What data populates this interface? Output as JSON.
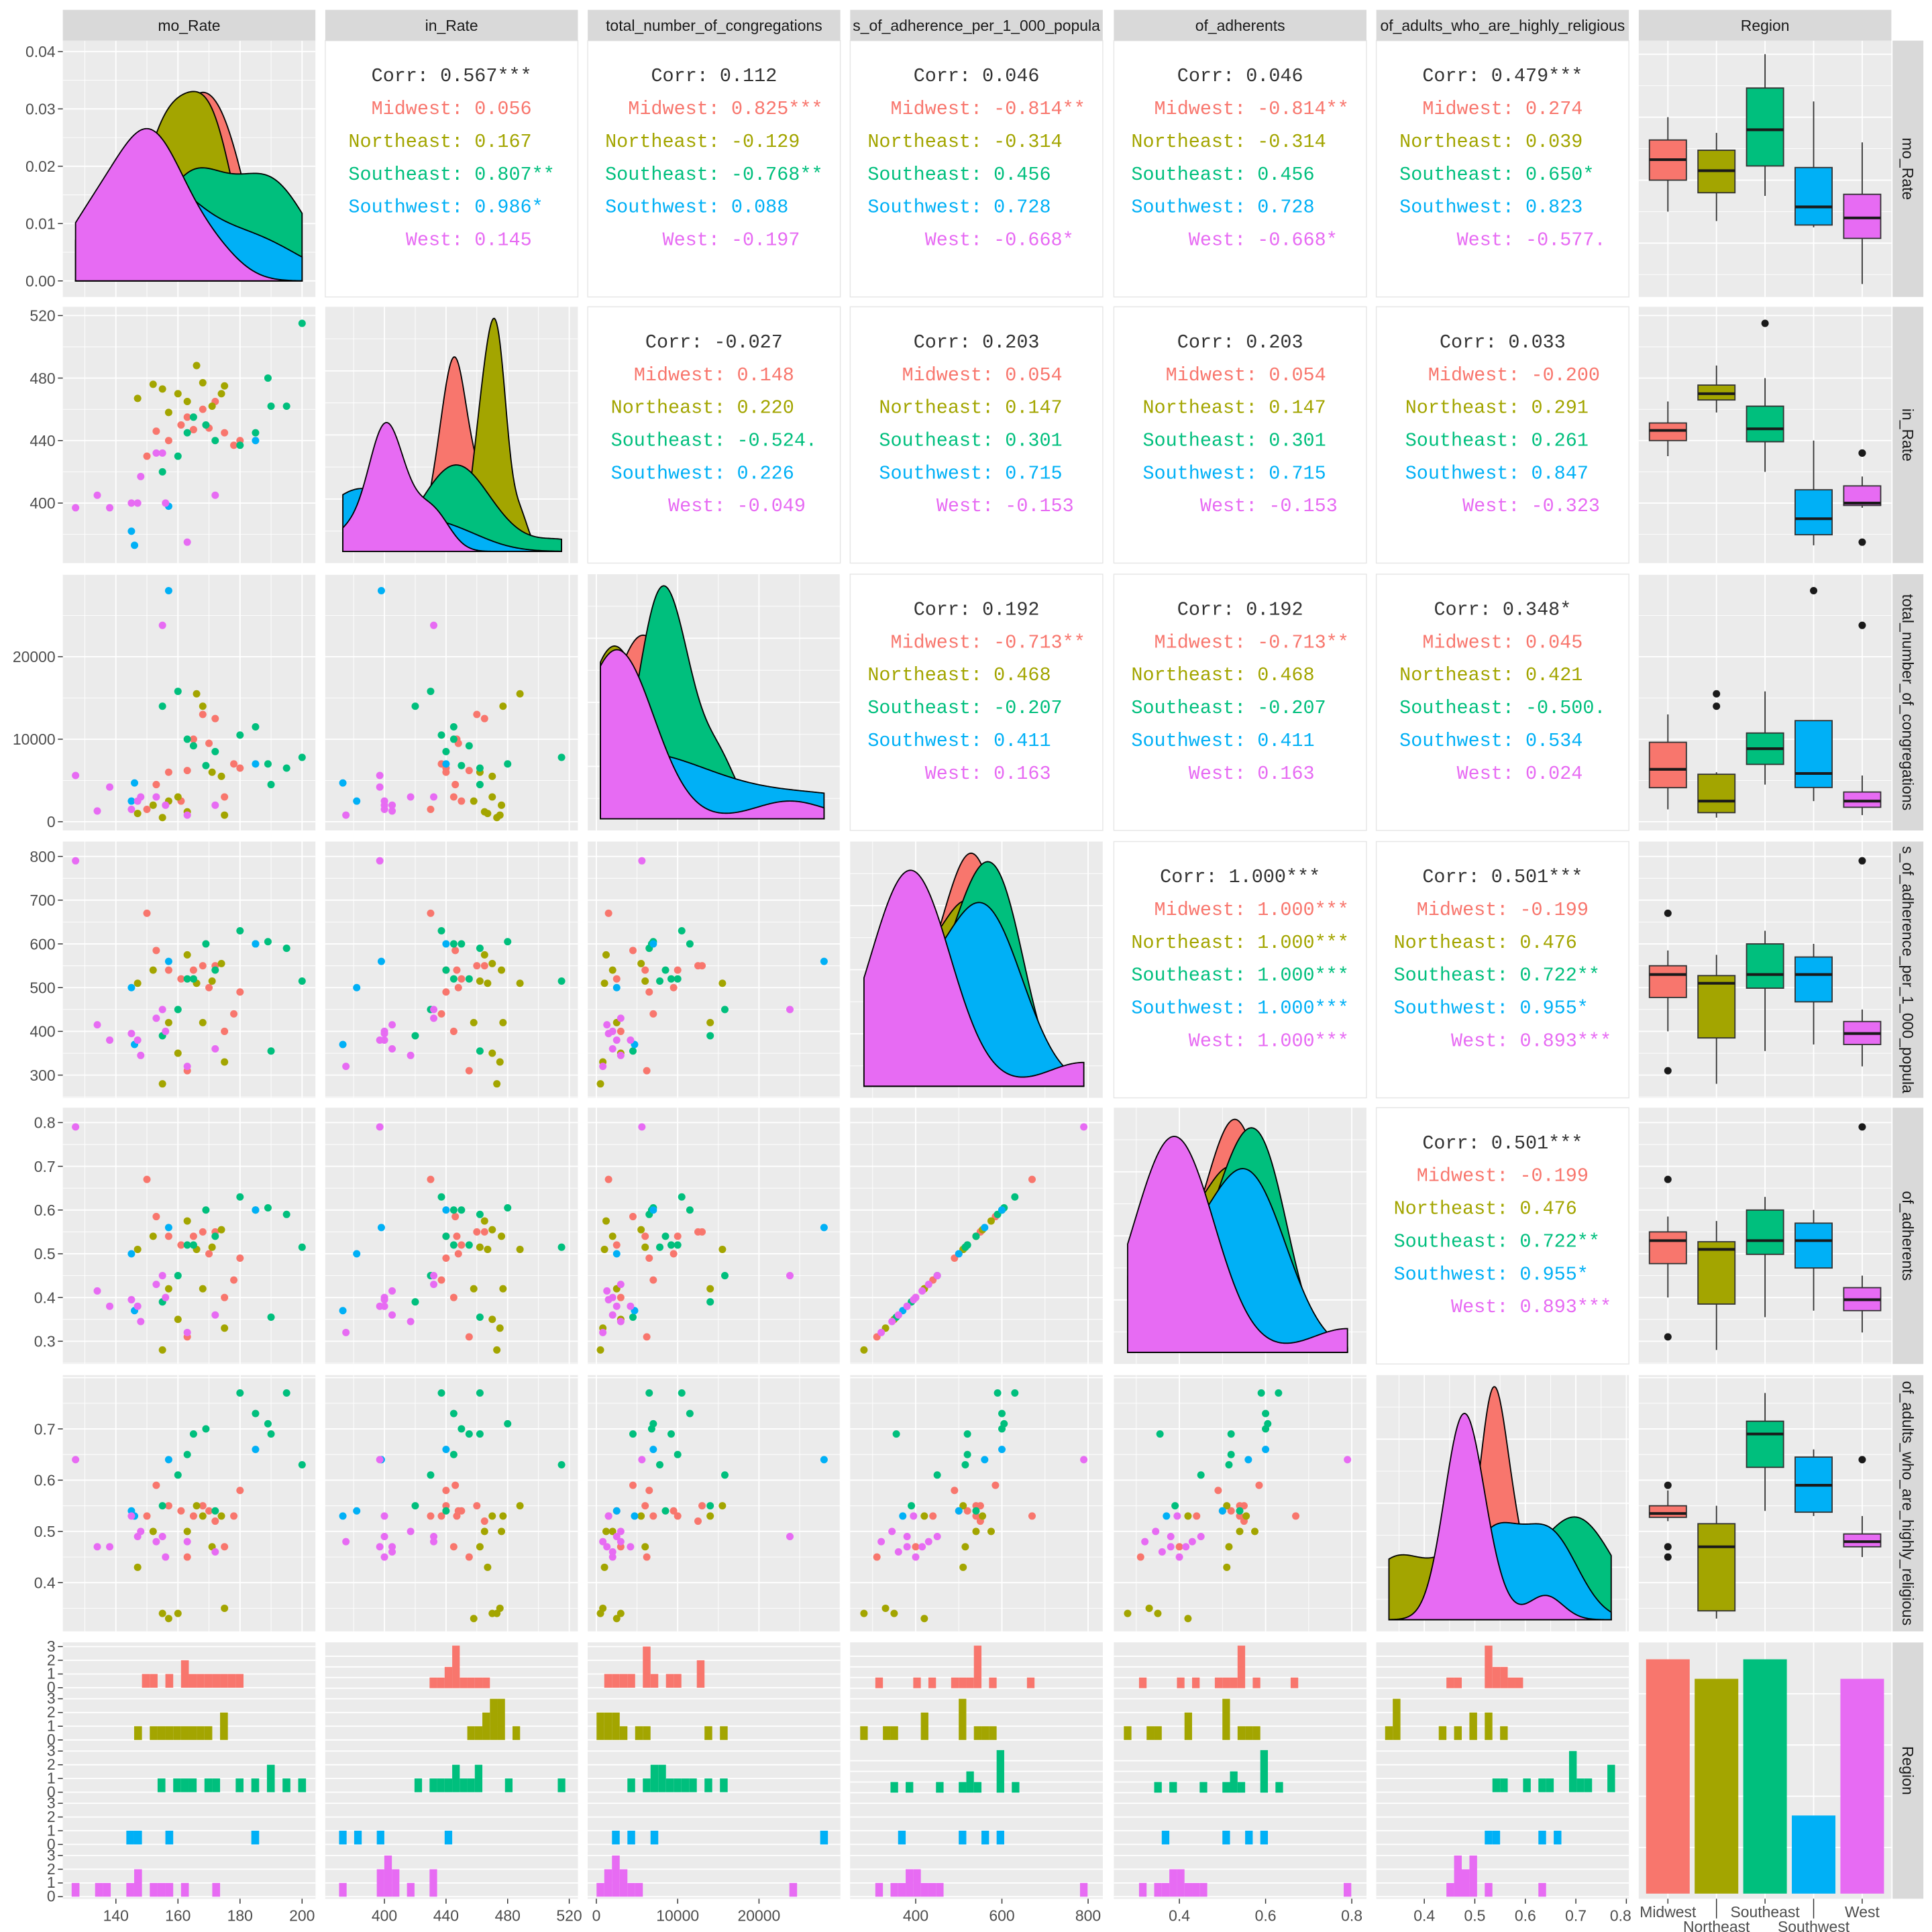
{
  "chart_data": {
    "type": "scatter",
    "subtype": "pairs plot (scatterplot matrix) colored by Region",
    "variables": [
      {
        "strip_label": "mo_Rate",
        "range": [
          122.9,
          204.3
        ],
        "x_ticks": [
          140,
          160,
          180,
          200
        ],
        "x_tick_labels": [
          "140",
          "160",
          "180",
          "200"
        ],
        "y_ticks": [],
        "y_tick_labels": []
      },
      {
        "strip_label": "in_Rate",
        "range": [
          361.6,
          525.6
        ],
        "x_ticks": [
          400,
          440,
          480,
          520
        ],
        "x_tick_labels": [
          "400",
          "440",
          "480",
          "520"
        ],
        "y_ticks": [
          400,
          440,
          480,
          520
        ],
        "y_tick_labels": [
          "400",
          "440",
          "480",
          "520"
        ]
      },
      {
        "strip_label": "total_number_of_congregations",
        "range": [
          -1060,
          30000
        ],
        "x_ticks": [
          0,
          10000,
          20000
        ],
        "x_tick_labels": [
          "0",
          "10000",
          "20000"
        ],
        "y_ticks": [
          0,
          10000,
          20000
        ],
        "y_tick_labels": [
          "0",
          "10000",
          "20000"
        ]
      },
      {
        "strip_label": "s_of_adherence_per_1_000_popula",
        "range": [
          248,
          834
        ],
        "x_ticks": [
          400,
          600,
          800
        ],
        "x_tick_labels": [
          "400",
          "600",
          "800"
        ],
        "y_ticks": [
          300,
          400,
          500,
          600,
          700,
          800
        ],
        "y_tick_labels": [
          "300",
          "400",
          "500",
          "600",
          "700",
          "800"
        ]
      },
      {
        "strip_label": "of_adherents",
        "range": [
          0.248,
          0.834
        ],
        "x_ticks": [
          0.4,
          0.6,
          0.8
        ],
        "x_tick_labels": [
          "0.4",
          "0.6",
          "0.8"
        ],
        "y_ticks": [
          0.3,
          0.4,
          0.5,
          0.6,
          0.7,
          0.8
        ],
        "y_tick_labels": [
          "0.3",
          "0.4",
          "0.5",
          "0.6",
          "0.7",
          "0.8"
        ]
      },
      {
        "strip_label": "of_adults_who_are_highly_religious",
        "range": [
          0.305,
          0.805
        ],
        "x_ticks": [
          0.4,
          0.5,
          0.6,
          0.7,
          0.8
        ],
        "x_tick_labels": [
          "0.4",
          "0.5",
          "0.6",
          "0.7",
          "0.8"
        ],
        "y_ticks": [
          0.4,
          0.5,
          0.6,
          0.7
        ],
        "y_tick_labels": [
          "0.4",
          "0.5",
          "0.6",
          "0.7"
        ]
      }
    ],
    "region": {
      "strip_label": "Region",
      "levels": [
        "Midwest",
        "Northeast",
        "Southeast",
        "Southwest",
        "West"
      ],
      "colors": [
        "#F8766D",
        "#A3A500",
        "#00BF7D",
        "#00B0F6",
        "#E76BF3"
      ]
    },
    "density_range": [
      -0.0028,
      0.0419
    ],
    "density_ticks": [
      0,
      0.01,
      0.02,
      0.03,
      0.04
    ],
    "density_tick_labels": [
      "0.00",
      "0.01",
      "0.02",
      "0.03",
      "0.04"
    ],
    "count_ticks": [
      0,
      1,
      2,
      3
    ],
    "count_tick_labels": [
      "0",
      "1",
      "2",
      "3"
    ],
    "correlations": [
      {
        "row": 0,
        "col": 1,
        "overall": "Corr: 0.567***",
        "lines": [
          "Midwest: 0.056",
          "Northeast: 0.167",
          "Southeast: 0.807**",
          "Southwest: 0.986*",
          "West: 0.145"
        ]
      },
      {
        "row": 0,
        "col": 2,
        "overall": "Corr: 0.112",
        "lines": [
          "Midwest: 0.825***",
          "Northeast: -0.129",
          "Southeast: -0.768**",
          "Southwest: 0.088",
          "West: -0.197"
        ]
      },
      {
        "row": 0,
        "col": 3,
        "overall": "Corr: 0.046",
        "lines": [
          "Midwest: -0.814**",
          "Northeast: -0.314",
          "Southeast: 0.456",
          "Southwest: 0.728",
          "West: -0.668*"
        ]
      },
      {
        "row": 0,
        "col": 4,
        "overall": "Corr: 0.046",
        "lines": [
          "Midwest: -0.814**",
          "Northeast: -0.314",
          "Southeast: 0.456",
          "Southwest: 0.728",
          "West: -0.668*"
        ]
      },
      {
        "row": 0,
        "col": 5,
        "overall": "Corr: 0.479***",
        "lines": [
          "Midwest: 0.274",
          "Northeast: 0.039",
          "Southeast: 0.650*",
          "Southwest: 0.823",
          "West: -0.577."
        ]
      },
      {
        "row": 1,
        "col": 2,
        "overall": "Corr: -0.027",
        "lines": [
          "Midwest: 0.148",
          "Northeast: 0.220",
          "Southeast: -0.524.",
          "Southwest: 0.226",
          "West: -0.049"
        ]
      },
      {
        "row": 1,
        "col": 3,
        "overall": "Corr: 0.203",
        "lines": [
          "Midwest: 0.054",
          "Northeast: 0.147",
          "Southeast: 0.301",
          "Southwest: 0.715",
          "West: -0.153"
        ]
      },
      {
        "row": 1,
        "col": 4,
        "overall": "Corr: 0.203",
        "lines": [
          "Midwest: 0.054",
          "Northeast: 0.147",
          "Southeast: 0.301",
          "Southwest: 0.715",
          "West: -0.153"
        ]
      },
      {
        "row": 1,
        "col": 5,
        "overall": "Corr: 0.033",
        "lines": [
          "Midwest: -0.200",
          "Northeast: 0.291",
          "Southeast: 0.261",
          "Southwest: 0.847",
          "West: -0.323"
        ]
      },
      {
        "row": 2,
        "col": 3,
        "overall": "Corr: 0.192",
        "lines": [
          "Midwest: -0.713**",
          "Northeast: 0.468",
          "Southeast: -0.207",
          "Southwest: 0.411",
          "West: 0.163"
        ]
      },
      {
        "row": 2,
        "col": 4,
        "overall": "Corr: 0.192",
        "lines": [
          "Midwest: -0.713**",
          "Northeast: 0.468",
          "Southeast: -0.207",
          "Southwest: 0.411",
          "West: 0.163"
        ]
      },
      {
        "row": 2,
        "col": 5,
        "overall": "Corr: 0.348*",
        "lines": [
          "Midwest: 0.045",
          "Northeast: 0.421",
          "Southeast: -0.500.",
          "Southwest: 0.534",
          "West: 0.024"
        ]
      },
      {
        "row": 3,
        "col": 4,
        "overall": "Corr: 1.000***",
        "lines": [
          "Midwest: 1.000***",
          "Northeast: 1.000***",
          "Southeast: 1.000***",
          "Southwest: 1.000***",
          "West: 1.000***"
        ]
      },
      {
        "row": 3,
        "col": 5,
        "overall": "Corr: 0.501***",
        "lines": [
          "Midwest: -0.199",
          "Northeast: 0.476",
          "Southeast: 0.722**",
          "Southwest: 0.955*",
          "West: 0.893***"
        ]
      },
      {
        "row": 4,
        "col": 5,
        "overall": "Corr: 0.501***",
        "lines": [
          "Midwest: -0.199",
          "Northeast: 0.476",
          "Southeast: 0.722**",
          "Southwest: 0.955*",
          "West: 0.893***"
        ]
      }
    ],
    "observations": {
      "Midwest": [
        [
          150,
          430,
          1500,
          670,
          0.67,
          0.53
        ],
        [
          153,
          446,
          4500,
          585,
          0.585,
          0.59
        ],
        [
          157,
          440,
          6000,
          540,
          0.54,
          0.55
        ],
        [
          161,
          450,
          2500,
          520,
          0.52,
          0.54
        ],
        [
          163,
          455,
          6200,
          310,
          0.31,
          0.45
        ],
        [
          165,
          447,
          10000,
          540,
          0.54,
          0.53
        ],
        [
          168,
          460,
          13000,
          550,
          0.55,
          0.55
        ],
        [
          170,
          448,
          9500,
          500,
          0.5,
          0.54
        ],
        [
          172,
          465,
          12500,
          550,
          0.55,
          0.52
        ],
        [
          175,
          445,
          3000,
          400,
          0.4,
          0.47
        ],
        [
          178,
          437,
          7000,
          440,
          0.44,
          0.53
        ],
        [
          180,
          440,
          6500,
          490,
          0.49,
          0.58
        ]
      ],
      "Northeast": [
        [
          147,
          467,
          1000,
          510,
          0.51,
          0.43
        ],
        [
          152,
          476,
          2000,
          540,
          0.54,
          0.5
        ],
        [
          155,
          473,
          500,
          280,
          0.28,
          0.34
        ],
        [
          157,
          458,
          2500,
          420,
          0.42,
          0.33
        ],
        [
          160,
          470,
          3000,
          350,
          0.35,
          0.34
        ],
        [
          163,
          465,
          1200,
          575,
          0.575,
          0.5
        ],
        [
          166,
          488,
          15500,
          510,
          0.51,
          0.55
        ],
        [
          168,
          477,
          14000,
          420,
          0.42,
          0.53
        ],
        [
          171,
          462,
          6000,
          515,
          0.515,
          0.47
        ],
        [
          174,
          470,
          5500,
          555,
          0.555,
          0.53
        ],
        [
          175,
          475,
          800,
          330,
          0.33,
          0.35
        ]
      ],
      "Southeast": [
        [
          155,
          420,
          14000,
          390,
          0.39,
          0.55
        ],
        [
          160,
          430,
          15800,
          450,
          0.45,
          0.61
        ],
        [
          163,
          445,
          10000,
          520,
          0.52,
          0.65
        ],
        [
          169,
          450,
          6800,
          600,
          0.6,
          0.7
        ],
        [
          172,
          440,
          8500,
          540,
          0.54,
          0.54
        ],
        [
          180,
          437,
          10500,
          630,
          0.63,
          0.77
        ],
        [
          185,
          445,
          11500,
          600,
          0.6,
          0.73
        ],
        [
          189,
          480,
          7000,
          605,
          0.605,
          0.71
        ],
        [
          190,
          462,
          4500,
          355,
          0.355,
          0.69
        ],
        [
          195,
          462,
          6500,
          590,
          0.59,
          0.77
        ],
        [
          200,
          515,
          7800,
          515,
          0.515,
          0.63
        ],
        [
          165,
          455,
          9200,
          520,
          0.52,
          0.69
        ]
      ],
      "Southwest": [
        [
          145,
          382,
          2500,
          500,
          0.5,
          0.54
        ],
        [
          146,
          373,
          4700,
          370,
          0.37,
          0.53
        ],
        [
          157,
          398,
          28000,
          560,
          0.56,
          0.64
        ],
        [
          185,
          440,
          7000,
          600,
          0.6,
          0.66
        ]
      ],
      "West": [
        [
          127,
          397,
          5600,
          790,
          0.79,
          0.64
        ],
        [
          134,
          405,
          1300,
          415,
          0.415,
          0.47
        ],
        [
          138,
          397,
          4200,
          380,
          0.38,
          0.47
        ],
        [
          145,
          400,
          1500,
          395,
          0.395,
          0.53
        ],
        [
          147,
          400,
          2500,
          380,
          0.38,
          0.49
        ],
        [
          148,
          417,
          3000,
          345,
          0.345,
          0.5
        ],
        [
          153,
          432,
          3000,
          430,
          0.43,
          0.48
        ],
        [
          155,
          432,
          23800,
          450,
          0.45,
          0.49
        ],
        [
          156,
          400,
          2000,
          400,
          0.4,
          0.45
        ],
        [
          163,
          375,
          800,
          320,
          0.32,
          0.48
        ],
        [
          172,
          405,
          2000,
          360,
          0.36,
          0.46
        ]
      ]
    }
  }
}
